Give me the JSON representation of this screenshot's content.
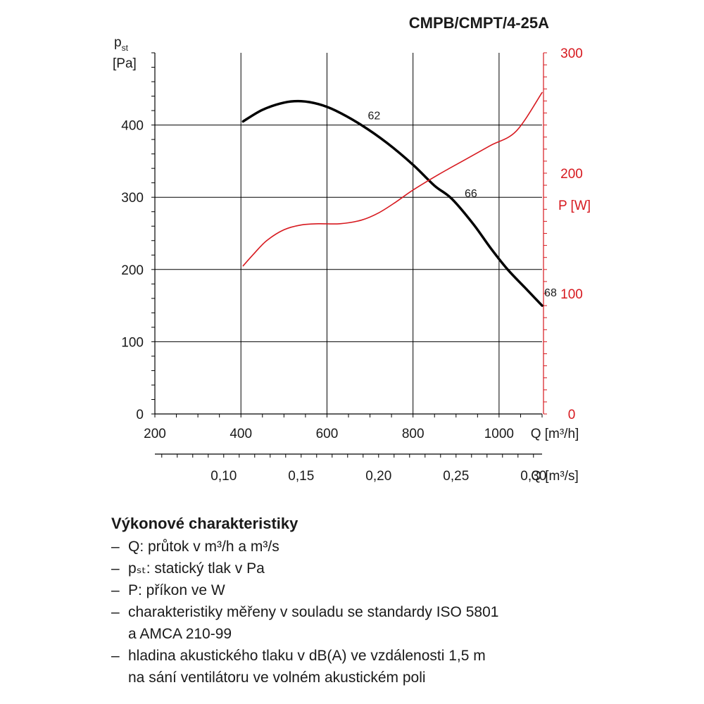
{
  "title": "CMPB/CMPT/4-25A",
  "chart_data": {
    "type": "line",
    "title": "CMPB/CMPT/4-25A",
    "x_axis": {
      "label": "Q [m³/h]",
      "range": [
        200,
        1100
      ],
      "ticks": [
        "200",
        "400",
        "600",
        "800",
        "1000"
      ]
    },
    "x2_axis": {
      "label": "Q [m³/s]",
      "ticks": [
        {
          "label": "0,10",
          "value": 0.1
        },
        {
          "label": "0,15",
          "value": 0.15
        },
        {
          "label": "0,20",
          "value": 0.2
        },
        {
          "label": "0,25",
          "value": 0.25
        },
        {
          "label": "0,30",
          "value": 0.3
        }
      ]
    },
    "y_axis_left": {
      "label_main": "p",
      "label_sub": "st",
      "label_unit": "[Pa]",
      "range": [
        0,
        500
      ],
      "ticks": [
        "0",
        "100",
        "200",
        "300",
        "400"
      ]
    },
    "y_axis_right": {
      "label": "P [W]",
      "color": "#d7191f",
      "range": [
        0,
        300
      ],
      "ticks": [
        "0",
        "100",
        "200",
        "300"
      ]
    },
    "grid": true,
    "series": [
      {
        "axis": "left",
        "color": "#000000",
        "x": [
          405,
          450,
          500,
          540,
          580,
          620,
          680,
          740,
          800,
          850,
          890,
          940,
          980,
          1020,
          1060,
          1100
        ],
        "y": [
          405,
          421,
          431,
          433,
          429,
          420,
          400,
          375,
          345,
          316,
          298,
          263,
          230,
          200,
          175,
          150
        ]
      },
      {
        "axis": "right",
        "color": "#d7191f",
        "x": [
          405,
          430,
          460,
          500,
          540,
          580,
          630,
          680,
          720,
          760,
          800,
          860,
          920,
          980,
          1040,
          1100
        ],
        "y": [
          123,
          133,
          144,
          153,
          157,
          158,
          158,
          161,
          167,
          176,
          186,
          199,
          211,
          223,
          235,
          267
        ]
      }
    ],
    "annotations": [
      {
        "text": "62",
        "x": 695,
        "y": 408
      },
      {
        "text": "66",
        "x": 920,
        "y": 300
      },
      {
        "text": "68",
        "x": 1105,
        "y": 163
      }
    ]
  },
  "legend": {
    "heading": "Výkonové charakteristiky",
    "dash": "–",
    "items": [
      "Q: průtok v m³/h a m³/s",
      "pₛₜ: statický tlak v Pa",
      "P: příkon ve W",
      "charakteristiky měřeny v souladu se standardy ISO 5801\na AMCA 210-99",
      "hladina akustického tlaku v dB(A) ve vzdálenosti 1,5 m\nna sání ventilátoru ve volném akustickém poli"
    ]
  }
}
